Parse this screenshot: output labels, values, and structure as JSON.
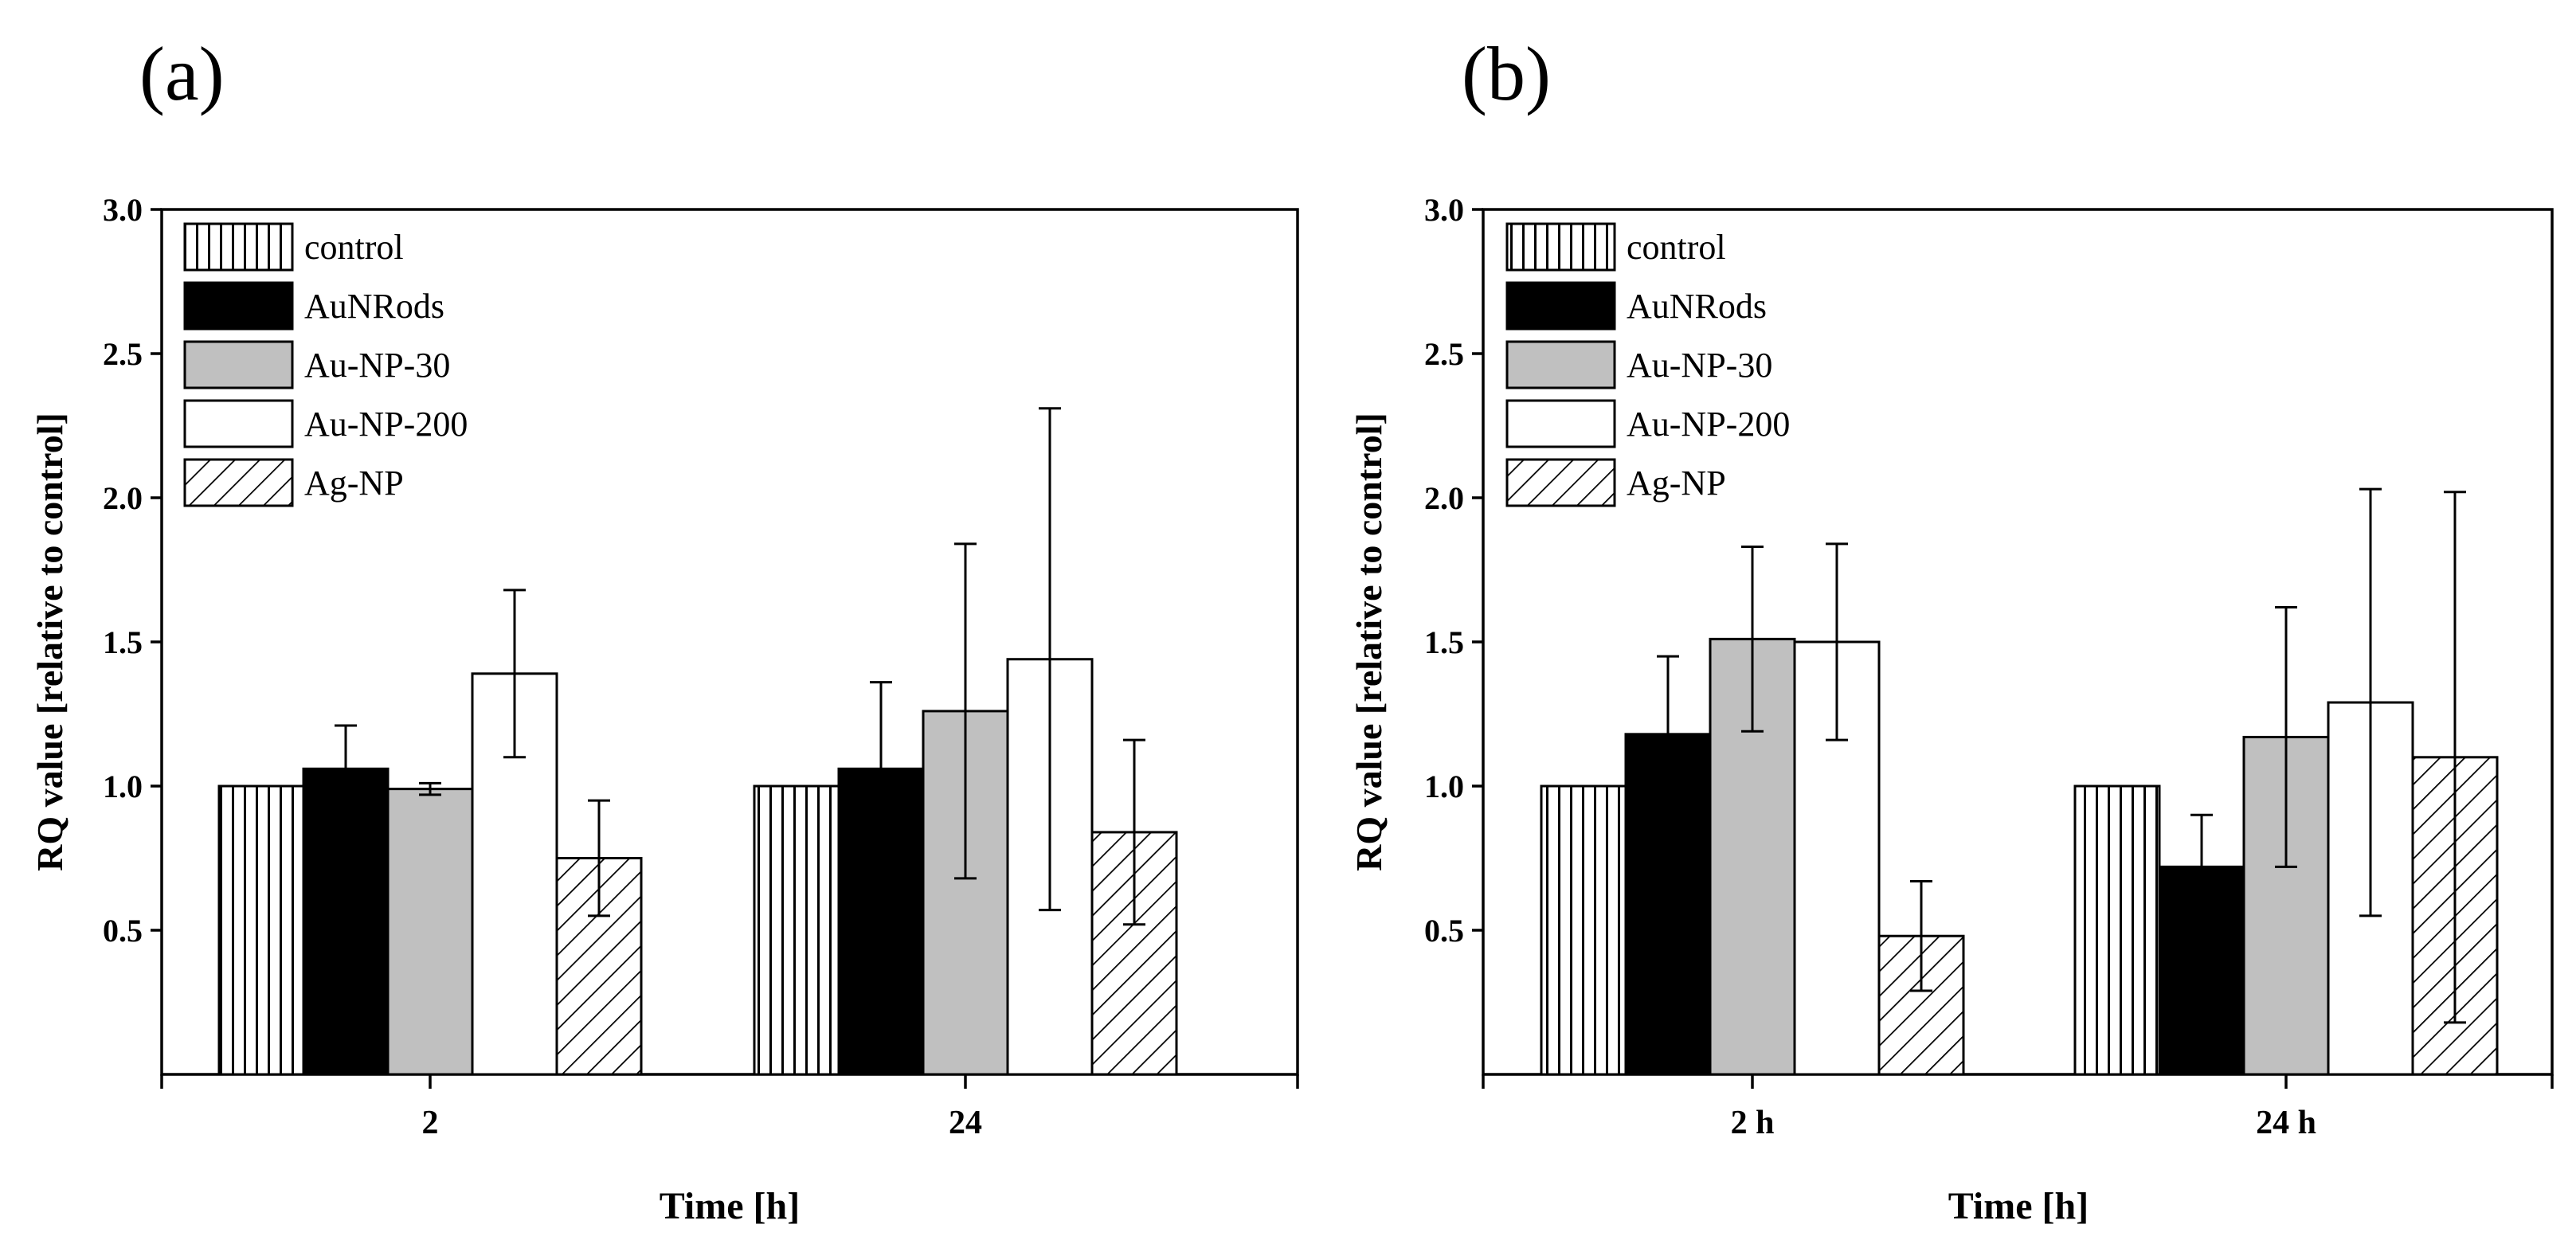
{
  "colors": {
    "black": "#000000",
    "gray": "#c0c0c0",
    "white": "#ffffff"
  },
  "legend": [
    {
      "label": "control",
      "pattern": "vlines"
    },
    {
      "label": "AuNRods",
      "pattern": "black"
    },
    {
      "label": "Au-NP-30",
      "pattern": "gray"
    },
    {
      "label": "Au-NP-200",
      "pattern": "white"
    },
    {
      "label": "Ag-NP",
      "pattern": "hatch"
    }
  ],
  "chart_data": [
    {
      "panel_label": "(a)",
      "type": "bar",
      "title": "",
      "xlabel": "Time [h]",
      "ylabel": "RQ value [relative to control]",
      "ylim": [
        0,
        3.0
      ],
      "yticks": [
        "0.5",
        "1.0",
        "1.5",
        "2.0",
        "2.5",
        "3.0"
      ],
      "categories": [
        "2",
        "24"
      ],
      "series": [
        {
          "name": "control",
          "values": [
            1.0,
            1.0
          ],
          "errors": [
            null,
            null
          ]
        },
        {
          "name": "AuNRods",
          "values": [
            1.06,
            1.06
          ],
          "errors": [
            0.15,
            0.3
          ]
        },
        {
          "name": "Au-NP-30",
          "values": [
            0.99,
            1.26
          ],
          "errors": [
            0.02,
            0.58
          ]
        },
        {
          "name": "Au-NP-200",
          "values": [
            1.39,
            1.44
          ],
          "errors": [
            0.29,
            0.87
          ]
        },
        {
          "name": "Ag-NP",
          "values": [
            0.75,
            0.84
          ],
          "errors": [
            0.2,
            0.32
          ]
        }
      ]
    },
    {
      "panel_label": "(b)",
      "type": "bar",
      "title": "",
      "xlabel": "Time [h]",
      "ylabel": "RQ value [relative to control]",
      "ylim": [
        0,
        3.0
      ],
      "yticks": [
        "0.5",
        "1.0",
        "1.5",
        "2.0",
        "2.5",
        "3.0"
      ],
      "categories": [
        "2 h",
        "24 h"
      ],
      "series": [
        {
          "name": "control",
          "values": [
            1.0,
            1.0
          ],
          "errors": [
            null,
            null
          ]
        },
        {
          "name": "AuNRods",
          "values": [
            1.18,
            0.72
          ],
          "errors": [
            0.27,
            0.18
          ]
        },
        {
          "name": "Au-NP-30",
          "values": [
            1.51,
            1.17
          ],
          "errors": [
            0.32,
            0.45
          ]
        },
        {
          "name": "Au-NP-200",
          "values": [
            1.5,
            1.29
          ],
          "errors": [
            0.34,
            0.74
          ]
        },
        {
          "name": "Ag-NP",
          "values": [
            0.48,
            1.1
          ],
          "errors": [
            0.19,
            0.92
          ]
        }
      ]
    }
  ]
}
